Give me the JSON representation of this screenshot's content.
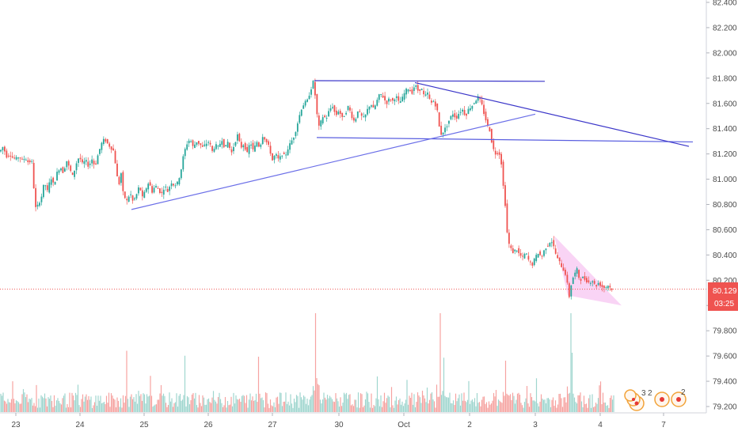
{
  "chart_data": {
    "type": "candlestick",
    "title": "",
    "xlabel": "",
    "ylabel": "",
    "ylim": [
      79.15,
      82.45
    ],
    "y_ticks": [
      79.2,
      79.4,
      79.6,
      79.8,
      80.0,
      80.2,
      80.4,
      80.6,
      80.8,
      81.0,
      81.2,
      81.4,
      81.6,
      81.8,
      82.0,
      82.2,
      82.4
    ],
    "y_tick_labels": [
      "79.200",
      "79.400",
      "79.600",
      "79.800",
      "80.000",
      "80.200",
      "80.400",
      "80.600",
      "80.800",
      "81.000",
      "81.200",
      "81.400",
      "81.600",
      "81.800",
      "82.000",
      "82.200",
      "82.400"
    ],
    "x_tick_labels": [
      "23",
      "24",
      "25",
      "26",
      "27",
      "30",
      "Oct",
      "2",
      "3",
      "4",
      "7"
    ],
    "current_price": {
      "value": 80.129,
      "label": "80.129",
      "countdown": "03:25"
    },
    "close_path": [
      [
        0,
        81.22
      ],
      [
        4,
        81.26
      ],
      [
        8,
        81.18
      ],
      [
        12,
        81.2
      ],
      [
        16,
        81.17
      ],
      [
        20,
        81.16
      ],
      [
        24,
        81.18
      ],
      [
        28,
        81.15
      ],
      [
        32,
        81.17
      ],
      [
        36,
        81.13
      ],
      [
        40,
        81.15
      ],
      [
        42,
        81.0
      ],
      [
        44,
        80.8
      ],
      [
        46,
        80.75
      ],
      [
        48,
        80.8
      ],
      [
        52,
        80.85
      ],
      [
        56,
        80.98
      ],
      [
        60,
        80.9
      ],
      [
        64,
        81.02
      ],
      [
        68,
        80.95
      ],
      [
        72,
        81.05
      ],
      [
        76,
        81.1
      ],
      [
        80,
        81.05
      ],
      [
        84,
        81.15
      ],
      [
        88,
        81.08
      ],
      [
        92,
        81.02
      ],
      [
        96,
        81.12
      ],
      [
        100,
        81.18
      ],
      [
        104,
        81.12
      ],
      [
        108,
        81.15
      ],
      [
        112,
        81.1
      ],
      [
        116,
        81.16
      ],
      [
        120,
        81.1
      ],
      [
        124,
        81.2
      ],
      [
        128,
        81.28
      ],
      [
        132,
        81.32
      ],
      [
        136,
        81.28
      ],
      [
        140,
        81.25
      ],
      [
        144,
        81.22
      ],
      [
        147,
        81.05
      ],
      [
        150,
        80.95
      ],
      [
        153,
        81.05
      ],
      [
        155,
        80.9
      ],
      [
        158,
        80.85
      ],
      [
        161,
        80.82
      ],
      [
        164,
        80.9
      ],
      [
        168,
        80.82
      ],
      [
        172,
        80.87
      ],
      [
        176,
        80.95
      ],
      [
        180,
        80.85
      ],
      [
        184,
        80.92
      ],
      [
        188,
        80.98
      ],
      [
        192,
        80.9
      ],
      [
        196,
        80.95
      ],
      [
        200,
        80.92
      ],
      [
        204,
        80.88
      ],
      [
        208,
        80.95
      ],
      [
        212,
        80.9
      ],
      [
        216,
        80.98
      ],
      [
        220,
        80.95
      ],
      [
        224,
        80.97
      ],
      [
        228,
        81.05
      ],
      [
        232,
        81.2
      ],
      [
        236,
        81.28
      ],
      [
        240,
        81.32
      ],
      [
        244,
        81.25
      ],
      [
        248,
        81.3
      ],
      [
        252,
        81.28
      ],
      [
        256,
        81.25
      ],
      [
        260,
        81.28
      ],
      [
        264,
        81.3
      ],
      [
        268,
        81.22
      ],
      [
        272,
        81.27
      ],
      [
        276,
        81.25
      ],
      [
        280,
        81.32
      ],
      [
        284,
        81.24
      ],
      [
        288,
        81.3
      ],
      [
        292,
        81.2
      ],
      [
        296,
        81.28
      ],
      [
        300,
        81.35
      ],
      [
        304,
        81.25
      ],
      [
        308,
        81.28
      ],
      [
        312,
        81.2
      ],
      [
        316,
        81.3
      ],
      [
        320,
        81.22
      ],
      [
        324,
        81.3
      ],
      [
        328,
        81.25
      ],
      [
        332,
        81.35
      ],
      [
        336,
        81.3
      ],
      [
        340,
        81.25
      ],
      [
        344,
        81.15
      ],
      [
        348,
        81.2
      ],
      [
        352,
        81.15
      ],
      [
        356,
        81.2
      ],
      [
        360,
        81.18
      ],
      [
        364,
        81.25
      ],
      [
        368,
        81.3
      ],
      [
        372,
        81.35
      ],
      [
        376,
        81.45
      ],
      [
        380,
        81.55
      ],
      [
        384,
        81.6
      ],
      [
        388,
        81.62
      ],
      [
        392,
        81.7
      ],
      [
        396,
        81.78
      ],
      [
        399,
        81.6
      ],
      [
        402,
        81.4
      ],
      [
        405,
        81.45
      ],
      [
        408,
        81.5
      ],
      [
        412,
        81.48
      ],
      [
        416,
        81.55
      ],
      [
        420,
        81.58
      ],
      [
        424,
        81.5
      ],
      [
        428,
        81.55
      ],
      [
        432,
        81.48
      ],
      [
        436,
        81.52
      ],
      [
        440,
        81.58
      ],
      [
        444,
        81.5
      ],
      [
        448,
        81.45
      ],
      [
        452,
        81.55
      ],
      [
        456,
        81.5
      ],
      [
        460,
        81.48
      ],
      [
        464,
        81.55
      ],
      [
        468,
        81.6
      ],
      [
        472,
        81.55
      ],
      [
        476,
        81.62
      ],
      [
        480,
        81.68
      ],
      [
        484,
        81.65
      ],
      [
        488,
        81.6
      ],
      [
        492,
        81.64
      ],
      [
        496,
        81.62
      ],
      [
        500,
        81.66
      ],
      [
        504,
        81.6
      ],
      [
        508,
        81.64
      ],
      [
        512,
        81.7
      ],
      [
        516,
        81.72
      ],
      [
        520,
        81.68
      ],
      [
        524,
        81.75
      ],
      [
        528,
        81.7
      ],
      [
        532,
        81.72
      ],
      [
        536,
        81.65
      ],
      [
        540,
        81.68
      ],
      [
        544,
        81.6
      ],
      [
        548,
        81.62
      ],
      [
        552,
        81.55
      ],
      [
        556,
        81.35
      ],
      [
        560,
        81.38
      ],
      [
        564,
        81.42
      ],
      [
        568,
        81.48
      ],
      [
        572,
        81.52
      ],
      [
        576,
        81.48
      ],
      [
        580,
        81.53
      ],
      [
        584,
        81.55
      ],
      [
        588,
        81.5
      ],
      [
        592,
        81.56
      ],
      [
        596,
        81.58
      ],
      [
        600,
        81.62
      ],
      [
        604,
        81.65
      ],
      [
        608,
        81.6
      ],
      [
        612,
        81.5
      ],
      [
        616,
        81.42
      ],
      [
        619,
        81.38
      ],
      [
        622,
        81.25
      ],
      [
        626,
        81.2
      ],
      [
        630,
        81.22
      ],
      [
        634,
        81.1
      ],
      [
        636,
        80.9
      ],
      [
        638,
        80.8
      ],
      [
        640,
        80.6
      ],
      [
        642,
        80.5
      ],
      [
        645,
        80.45
      ],
      [
        648,
        80.42
      ],
      [
        652,
        80.45
      ],
      [
        656,
        80.4
      ],
      [
        660,
        80.38
      ],
      [
        664,
        80.42
      ],
      [
        668,
        80.35
      ],
      [
        672,
        80.32
      ],
      [
        676,
        80.38
      ],
      [
        680,
        80.42
      ],
      [
        684,
        80.38
      ],
      [
        688,
        80.45
      ],
      [
        692,
        80.48
      ],
      [
        696,
        80.52
      ],
      [
        700,
        80.45
      ],
      [
        703,
        80.38
      ],
      [
        706,
        80.35
      ],
      [
        710,
        80.3
      ],
      [
        714,
        80.25
      ],
      [
        716,
        80.2
      ],
      [
        718,
        80.05
      ],
      [
        720,
        80.1
      ],
      [
        722,
        80.2
      ],
      [
        726,
        80.25
      ],
      [
        728,
        80.3
      ],
      [
        732,
        80.2
      ],
      [
        736,
        80.22
      ],
      [
        740,
        80.2
      ],
      [
        744,
        80.18
      ],
      [
        748,
        80.2
      ],
      [
        752,
        80.15
      ],
      [
        756,
        80.18
      ],
      [
        760,
        80.15
      ],
      [
        764,
        80.14
      ],
      [
        768,
        80.16
      ],
      [
        772,
        80.13
      ],
      [
        775,
        80.14
      ]
    ],
    "volume_spikes": [
      [
        398,
        1.0
      ],
      [
        556,
        1.0
      ],
      [
        721,
        1.0
      ],
      [
        160,
        0.62
      ],
      [
        233,
        0.57
      ],
      [
        327,
        0.56
      ],
      [
        560,
        0.55
      ],
      [
        639,
        0.52
      ],
      [
        722,
        0.6
      ]
    ],
    "trendlines": [
      {
        "name": "upper-horizontal",
        "color": "#3b36c9",
        "points": [
          [
            397,
            81.78
          ],
          [
            688,
            81.775
          ]
        ]
      },
      {
        "name": "lower-horizontal",
        "color": "#5a5fe0",
        "points": [
          [
            400,
            81.33
          ],
          [
            875,
            81.295
          ]
        ]
      },
      {
        "name": "rising-support",
        "color": "#6b6fe8",
        "points": [
          [
            166,
            80.76
          ],
          [
            676,
            81.515
          ]
        ]
      },
      {
        "name": "falling-resistance",
        "color": "#3b36c9",
        "points": [
          [
            524,
            81.765
          ],
          [
            870,
            81.26
          ]
        ]
      }
    ],
    "pattern_triangle": {
      "color": "#f7c6f2",
      "points": [
        [
          700,
          80.55
        ],
        [
          785,
          80.0
        ],
        [
          717,
          80.08
        ]
      ]
    },
    "colors": {
      "up": "#26a69a",
      "down": "#ef5350",
      "volume_up": "#9fd6cf",
      "volume_down": "#f6a3a1",
      "price_badge": "#ef5350"
    }
  }
}
